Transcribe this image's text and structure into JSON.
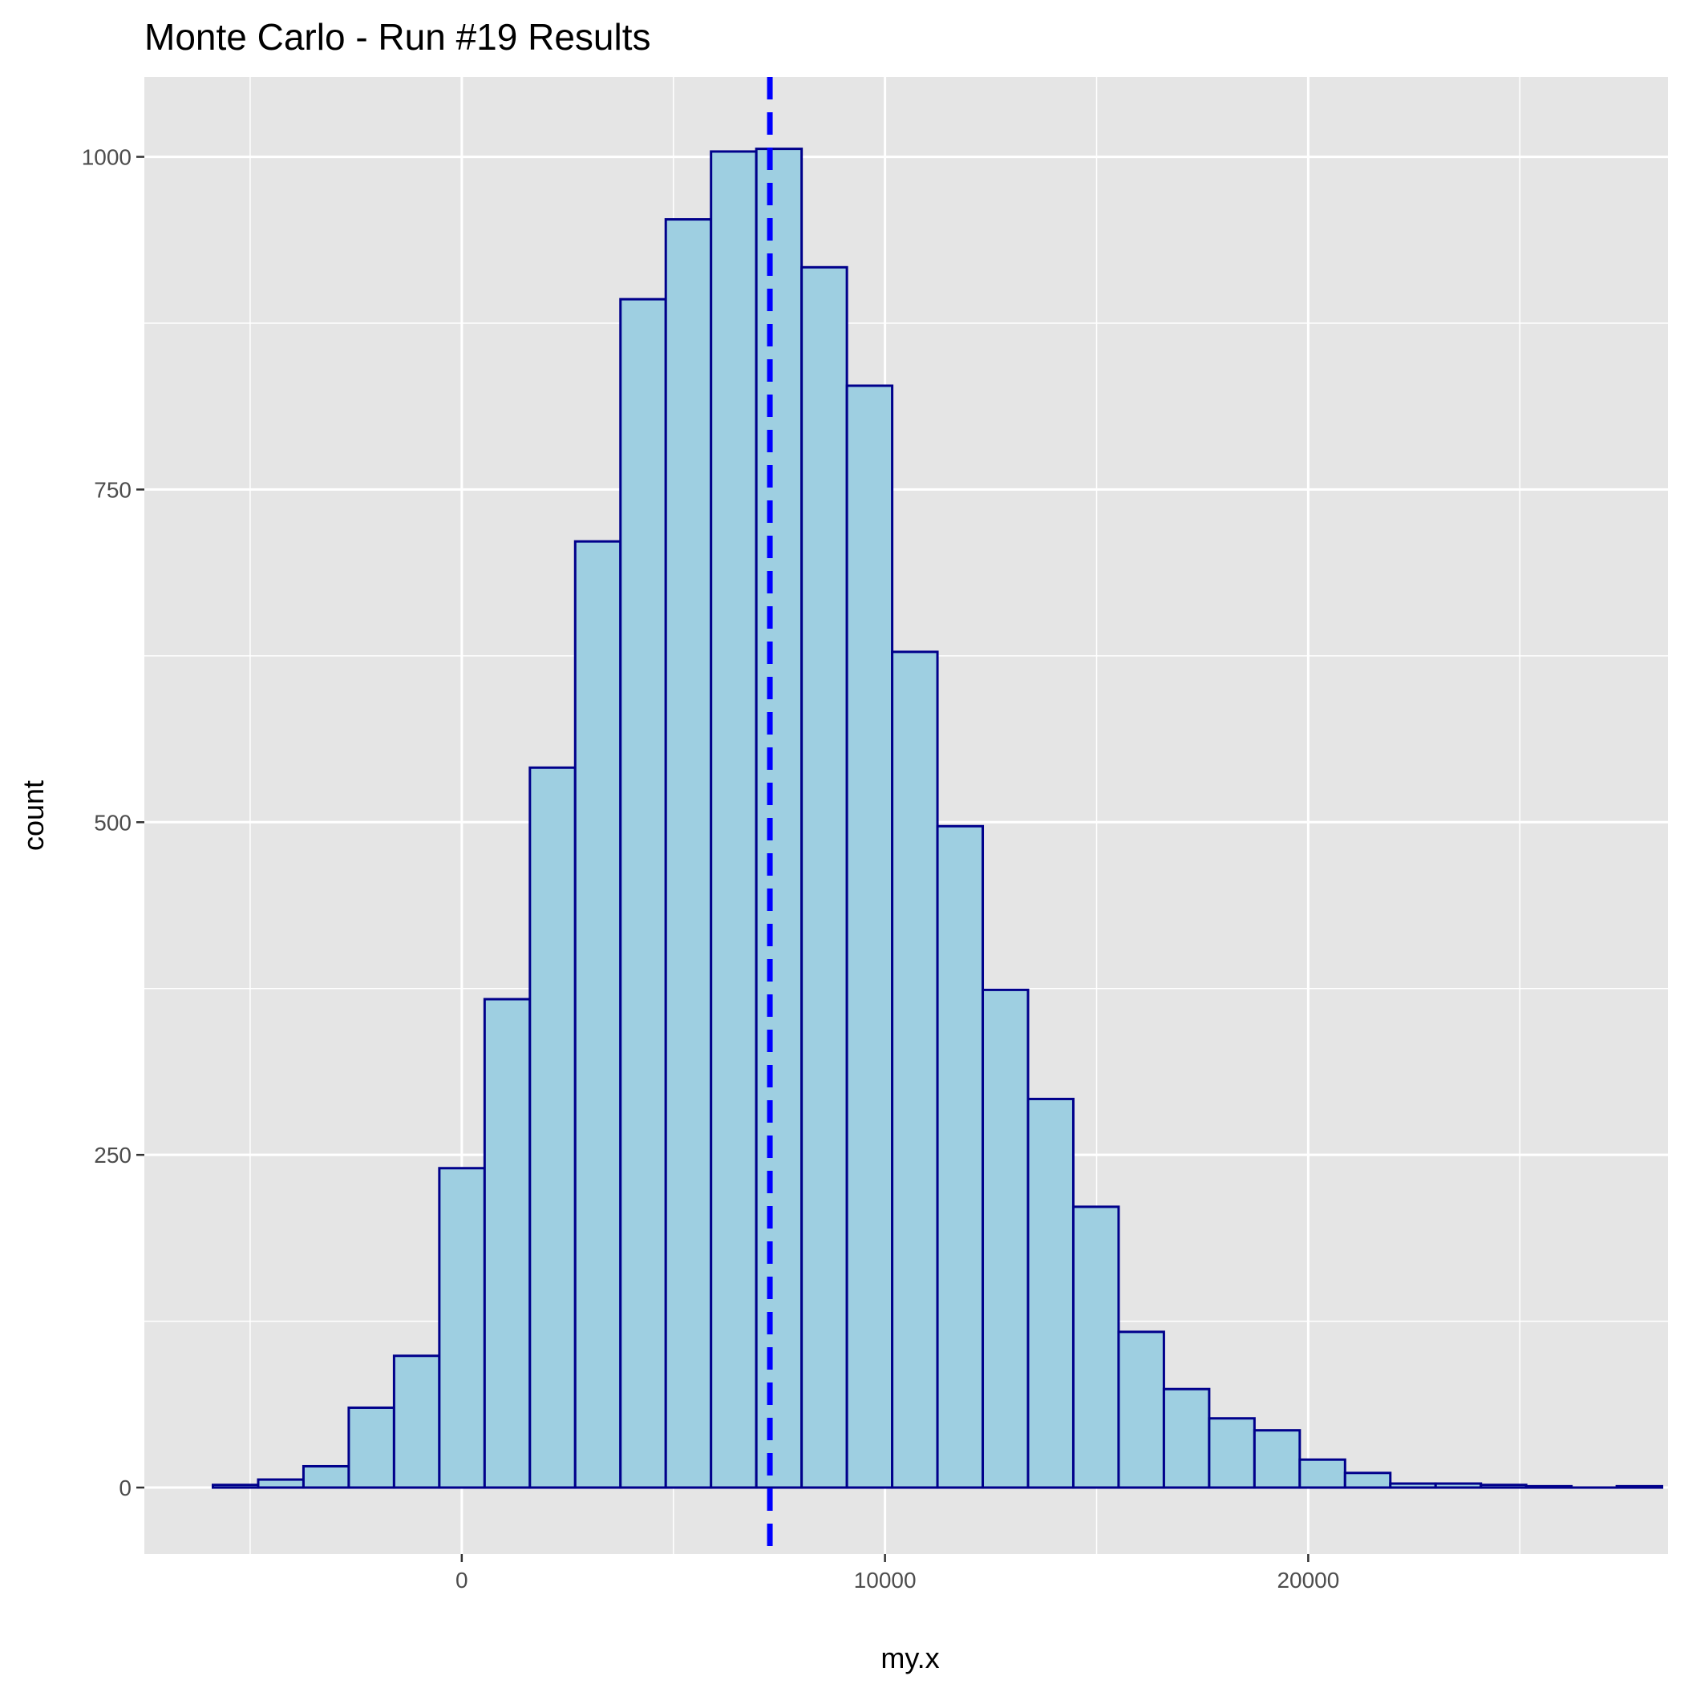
{
  "chart_data": {
    "type": "bar",
    "title": "Monte Carlo - Run #19 Results",
    "xlabel": "my.x",
    "ylabel": "count",
    "xlim": [
      -7500,
      28500
    ],
    "ylim": [
      -50,
      1060
    ],
    "x_ticks": [
      0,
      10000,
      20000
    ],
    "x_minor_ticks": [
      -5000,
      5000,
      15000,
      25000
    ],
    "y_ticks": [
      0,
      250,
      500,
      750,
      1000
    ],
    "y_minor_ticks": [
      125,
      375,
      625,
      875
    ],
    "grid": true,
    "bin_width": 1070,
    "bins_x": [
      -5880,
      -4810,
      -3740,
      -2670,
      -1600,
      -530,
      540,
      1610,
      2680,
      3750,
      4820,
      5890,
      6960,
      8030,
      9100,
      10170,
      11240,
      12310,
      13380,
      14450,
      15520,
      16590,
      17660,
      18730,
      19800,
      20870,
      21940,
      23010,
      24080,
      25150,
      26220,
      27290
    ],
    "values": [
      2,
      6,
      16,
      60,
      99,
      240,
      367,
      541,
      711,
      893,
      953,
      1004,
      1006,
      917,
      828,
      628,
      497,
      374,
      292,
      211,
      117,
      74,
      52,
      43,
      21,
      11,
      3,
      3,
      2,
      1,
      0,
      1
    ],
    "reference_line": {
      "x": 7280,
      "style": "dashed",
      "color": "#0000ff"
    },
    "colors": {
      "panel_background": "#e5e5e5",
      "gridline": "#ffffff",
      "bar_fill": "#9ecfe1",
      "bar_outline": "#00008b",
      "tick_text": "#4d4d4d"
    }
  }
}
